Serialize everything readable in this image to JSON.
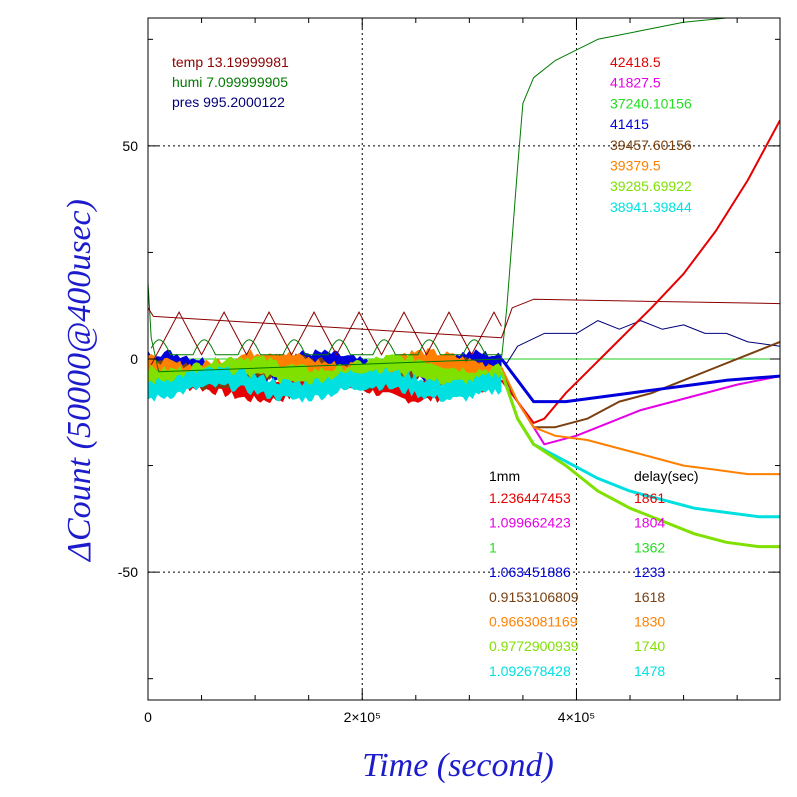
{
  "chart_data": {
    "type": "line",
    "xlabel": "Time (second)",
    "ylabel": "ΔCount (50000@400usec)",
    "xlim": [
      0,
      590000
    ],
    "ylim": [
      -80,
      80
    ],
    "x_ticks": [
      {
        "value": 0,
        "label": "0"
      },
      {
        "value": 200000,
        "label": "2×10⁵"
      },
      {
        "value": 400000,
        "label": "4×10⁵"
      }
    ],
    "y_ticks": [
      {
        "value": 50,
        "label": "50"
      },
      {
        "value": 0,
        "label": "0"
      },
      {
        "value": -50,
        "label": "-50"
      }
    ],
    "grid": true,
    "env_legend": [
      {
        "name": "temp",
        "value": "13.19999981",
        "color": "#8b0000"
      },
      {
        "name": "humi",
        "value": "7.099999905",
        "color": "#007a00"
      },
      {
        "name": "pres",
        "value": "995.2000122",
        "color": "#00007a"
      }
    ],
    "value_legend": [
      {
        "value": "42418.5",
        "color": "#e60000"
      },
      {
        "value": "41827.5",
        "color": "#e600e6"
      },
      {
        "value": "37240.10156",
        "color": "#22dd22"
      },
      {
        "value": "41415",
        "color": "#0000dd"
      },
      {
        "value": "39457.60156",
        "color": "#7a4010"
      },
      {
        "value": "39379.5",
        "color": "#ff8000"
      },
      {
        "value": "39285.69922",
        "color": "#80e000"
      },
      {
        "value": "38941.39844",
        "color": "#00e0e0"
      }
    ],
    "table_headers": {
      "col1": "1mm",
      "col2": "delay(sec)"
    },
    "table_rows": [
      {
        "ratio": "1.236447453",
        "delay": "1861",
        "color": "#e60000"
      },
      {
        "ratio": "1.099662423",
        "delay": "1804",
        "color": "#e600e6"
      },
      {
        "ratio": "1",
        "delay": "1362",
        "color": "#22dd22"
      },
      {
        "ratio": "1.063451886",
        "delay": "1233",
        "color": "#0000dd"
      },
      {
        "ratio": "0.9153106809",
        "delay": "1618",
        "color": "#7a4010"
      },
      {
        "ratio": "0.9663081169",
        "delay": "1830",
        "color": "#ff8000"
      },
      {
        "ratio": "0.9772900939",
        "delay": "1740",
        "color": "#80e000"
      },
      {
        "ratio": "1.092678428",
        "delay": "1478",
        "color": "#00e0e0"
      }
    ],
    "series": [
      {
        "color": "#007a00",
        "width": 1,
        "points": [
          [
            0,
            18
          ],
          [
            3000,
            5
          ],
          [
            10000,
            -3
          ],
          [
            330000,
            0
          ],
          [
            335000,
            12
          ],
          [
            338000,
            22
          ],
          [
            345000,
            45
          ],
          [
            350000,
            60
          ],
          [
            360000,
            66
          ],
          [
            380000,
            70
          ],
          [
            420000,
            75
          ],
          [
            460000,
            77
          ],
          [
            500000,
            79
          ],
          [
            540000,
            80
          ],
          [
            590000,
            80
          ]
        ]
      },
      {
        "color": "#8b0000",
        "width": 1,
        "points": [
          [
            0,
            12
          ],
          [
            5000,
            10
          ],
          [
            330000,
            5
          ],
          [
            340000,
            12
          ],
          [
            360000,
            14
          ],
          [
            590000,
            13
          ]
        ]
      },
      {
        "color": "#00007a",
        "width": 1,
        "points": [
          [
            330000,
            0
          ],
          [
            335000,
            -1
          ],
          [
            345000,
            3
          ],
          [
            370000,
            6
          ],
          [
            400000,
            6
          ],
          [
            420000,
            9
          ],
          [
            440000,
            7
          ],
          [
            460000,
            9
          ],
          [
            480000,
            7
          ],
          [
            500000,
            8
          ],
          [
            520000,
            6
          ],
          [
            540000,
            6
          ],
          [
            560000,
            4
          ],
          [
            590000,
            3
          ]
        ]
      },
      {
        "color": "#e60000",
        "width": 2,
        "points": [
          [
            330000,
            -5
          ],
          [
            345000,
            -10
          ],
          [
            360000,
            -15
          ],
          [
            370000,
            -14
          ],
          [
            390000,
            -8
          ],
          [
            410000,
            -3
          ],
          [
            430000,
            2
          ],
          [
            450000,
            7
          ],
          [
            470000,
            12
          ],
          [
            500000,
            20
          ],
          [
            530000,
            30
          ],
          [
            560000,
            42
          ],
          [
            590000,
            56
          ]
        ]
      },
      {
        "color": "#e600e6",
        "width": 2,
        "points": [
          [
            330000,
            -3
          ],
          [
            345000,
            -10
          ],
          [
            370000,
            -20
          ],
          [
            400000,
            -18
          ],
          [
            430000,
            -15
          ],
          [
            460000,
            -12
          ],
          [
            490000,
            -10
          ],
          [
            520000,
            -8
          ],
          [
            550000,
            -6
          ],
          [
            590000,
            -4
          ]
        ]
      },
      {
        "color": "#7a4010",
        "width": 2,
        "points": [
          [
            330000,
            -3
          ],
          [
            345000,
            -10
          ],
          [
            360000,
            -16
          ],
          [
            380000,
            -16
          ],
          [
            410000,
            -14
          ],
          [
            440000,
            -10
          ],
          [
            470000,
            -8
          ],
          [
            500000,
            -5
          ],
          [
            530000,
            -2
          ],
          [
            560000,
            1
          ],
          [
            590000,
            4
          ]
        ]
      },
      {
        "color": "#0000dd",
        "width": 3,
        "points": [
          [
            330000,
            0
          ],
          [
            345000,
            -5
          ],
          [
            360000,
            -10
          ],
          [
            390000,
            -10
          ],
          [
            420000,
            -9
          ],
          [
            450000,
            -8
          ],
          [
            480000,
            -7
          ],
          [
            510000,
            -6
          ],
          [
            540000,
            -5
          ],
          [
            590000,
            -4
          ]
        ]
      },
      {
        "color": "#ff8000",
        "width": 2,
        "points": [
          [
            330000,
            -2
          ],
          [
            345000,
            -10
          ],
          [
            360000,
            -16
          ],
          [
            380000,
            -18
          ],
          [
            410000,
            -19
          ],
          [
            440000,
            -21
          ],
          [
            470000,
            -23
          ],
          [
            500000,
            -25
          ],
          [
            530000,
            -26
          ],
          [
            560000,
            -27
          ],
          [
            590000,
            -27
          ]
        ]
      },
      {
        "color": "#00e0e0",
        "width": 3,
        "points": [
          [
            330000,
            -3
          ],
          [
            345000,
            -14
          ],
          [
            360000,
            -20
          ],
          [
            390000,
            -24
          ],
          [
            420000,
            -28
          ],
          [
            450000,
            -31
          ],
          [
            480000,
            -33
          ],
          [
            510000,
            -35
          ],
          [
            540000,
            -36
          ],
          [
            570000,
            -37
          ],
          [
            590000,
            -37
          ]
        ]
      },
      {
        "color": "#80e000",
        "width": 3,
        "points": [
          [
            330000,
            -3
          ],
          [
            345000,
            -14
          ],
          [
            360000,
            -20
          ],
          [
            390000,
            -25
          ],
          [
            420000,
            -31
          ],
          [
            450000,
            -35
          ],
          [
            480000,
            -38
          ],
          [
            510000,
            -41
          ],
          [
            540000,
            -43
          ],
          [
            570000,
            -44
          ],
          [
            590000,
            -44
          ]
        ]
      }
    ]
  }
}
